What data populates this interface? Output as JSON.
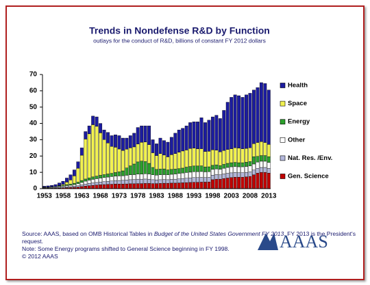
{
  "chart_data": {
    "type": "stacked-bar",
    "title": "Trends in Nondefense R&D by Function",
    "subtitle": "outlays for the conduct of R&D, billions of constant FY 2012 dollars",
    "categories": [
      "1953",
      null,
      null,
      null,
      null,
      "1958",
      null,
      null,
      null,
      null,
      "1963",
      null,
      null,
      null,
      null,
      "1968",
      null,
      null,
      null,
      null,
      "1973",
      null,
      null,
      null,
      null,
      "1978",
      null,
      null,
      null,
      null,
      "1983",
      null,
      null,
      null,
      null,
      "1988",
      null,
      null,
      null,
      null,
      "1993",
      null,
      null,
      null,
      null,
      "1998",
      null,
      null,
      null,
      null,
      "2003",
      null,
      null,
      null,
      null,
      "2008",
      null,
      null,
      null,
      null,
      "2013"
    ],
    "ylim": [
      0,
      70
    ],
    "yticks": [
      0,
      10,
      20,
      30,
      40,
      50,
      60,
      70
    ],
    "series": [
      {
        "name": "Gen. Science",
        "color": "#c00000",
        "values": [
          0.3,
          0.3,
          0.3,
          0.4,
          0.4,
          0.5,
          0.6,
          0.7,
          0.8,
          1.0,
          1.3,
          1.6,
          1.8,
          2.0,
          2.2,
          2.4,
          2.5,
          2.6,
          2.7,
          2.8,
          2.8,
          2.8,
          2.9,
          3.0,
          3.0,
          3.1,
          3.1,
          3.2,
          3.2,
          3.1,
          3.1,
          3.2,
          3.3,
          3.3,
          3.4,
          3.4,
          3.5,
          3.6,
          3.7,
          3.8,
          3.9,
          3.9,
          4.0,
          4.0,
          4.1,
          5.5,
          5.8,
          5.8,
          6.2,
          6.5,
          6.8,
          7.0,
          7.0,
          7.0,
          7.2,
          7.5,
          8.5,
          9.5,
          10.0,
          10.0,
          9.5
        ]
      },
      {
        "name": "Nat. Res. /Env.",
        "color": "#b4b8dc",
        "values": [
          0.2,
          0.2,
          0.3,
          0.3,
          0.4,
          0.5,
          0.6,
          0.6,
          0.7,
          0.8,
          1.0,
          1.2,
          1.4,
          1.5,
          1.6,
          1.7,
          1.8,
          1.9,
          2.0,
          2.1,
          2.2,
          2.3,
          2.4,
          2.5,
          2.6,
          2.7,
          2.7,
          2.7,
          2.6,
          2.4,
          2.3,
          2.3,
          2.3,
          2.2,
          2.3,
          2.4,
          2.5,
          2.6,
          2.7,
          2.8,
          2.9,
          2.9,
          2.9,
          2.8,
          2.8,
          2.8,
          2.8,
          2.7,
          2.8,
          2.9,
          2.9,
          2.9,
          2.8,
          2.8,
          2.8,
          2.8,
          2.9,
          3.0,
          3.0,
          3.0,
          2.9
        ]
      },
      {
        "name": "Other",
        "color": "#ffffff",
        "values": [
          0.3,
          0.3,
          0.4,
          0.4,
          0.5,
          0.6,
          0.7,
          0.8,
          1.0,
          1.2,
          1.5,
          1.8,
          2.0,
          2.2,
          2.3,
          2.4,
          2.5,
          2.6,
          2.7,
          2.8,
          2.8,
          2.8,
          2.9,
          3.0,
          3.0,
          3.1,
          3.1,
          3.2,
          3.2,
          3.0,
          2.9,
          3.0,
          3.0,
          3.0,
          3.1,
          3.2,
          3.3,
          3.4,
          3.5,
          3.5,
          3.6,
          3.6,
          3.6,
          3.5,
          3.5,
          3.5,
          3.5,
          3.4,
          3.5,
          3.6,
          3.7,
          3.7,
          3.6,
          3.6,
          3.6,
          3.6,
          3.7,
          3.8,
          3.8,
          3.8,
          3.7
        ]
      },
      {
        "name": "Energy",
        "color": "#2ca02c",
        "values": [
          0.2,
          0.2,
          0.2,
          0.3,
          0.4,
          0.5,
          0.6,
          0.7,
          0.8,
          1.0,
          1.2,
          1.3,
          1.4,
          1.5,
          1.6,
          1.7,
          1.8,
          1.9,
          2.0,
          2.2,
          2.5,
          3.0,
          4.5,
          5.5,
          6.5,
          7.5,
          8.0,
          7.5,
          6.5,
          4.5,
          3.5,
          3.5,
          3.5,
          3.0,
          3.0,
          3.0,
          3.0,
          3.0,
          3.3,
          3.5,
          3.5,
          3.5,
          3.5,
          3.0,
          3.0,
          2.5,
          2.5,
          2.2,
          2.4,
          2.5,
          2.5,
          2.5,
          2.5,
          2.5,
          2.6,
          2.7,
          4.5,
          3.5,
          3.5,
          3.5,
          3.5
        ]
      },
      {
        "name": "Space",
        "color": "#f2f250",
        "values": [
          0,
          0,
          0,
          0,
          0.2,
          0.5,
          1.5,
          2.5,
          4.5,
          8.5,
          15.5,
          24.5,
          27.0,
          32.0,
          30.5,
          26.0,
          21.5,
          19.0,
          16.5,
          15.5,
          14.0,
          12.5,
          11.5,
          11.0,
          10.5,
          11.0,
          11.5,
          12.0,
          11.5,
          9.0,
          8.5,
          9.5,
          8.5,
          8.0,
          9.0,
          9.5,
          10.0,
          10.5,
          10.5,
          11.0,
          11.0,
          10.5,
          10.5,
          9.5,
          9.5,
          9.5,
          9.0,
          8.5,
          8.5,
          8.5,
          8.5,
          9.0,
          9.0,
          8.5,
          8.5,
          8.5,
          8.0,
          8.5,
          8.5,
          8.0,
          7.5
        ]
      },
      {
        "name": "Health",
        "color": "#1c1ca0",
        "values": [
          0.5,
          0.7,
          0.8,
          1.1,
          1.6,
          1.9,
          2.5,
          3.2,
          3.7,
          4.0,
          4.5,
          4.6,
          4.9,
          5.3,
          5.8,
          5.8,
          5.9,
          6.5,
          6.6,
          7.6,
          8.2,
          7.6,
          6.8,
          7.5,
          8.4,
          10.1,
          10.1,
          9.9,
          11.5,
          8.0,
          7.2,
          9.5,
          8.9,
          9.0,
          10.7,
          12.5,
          13.7,
          13.9,
          14.8,
          15.9,
          16.1,
          16.6,
          19.0,
          17.7,
          19.1,
          20.2,
          21.4,
          20.4,
          24.6,
          29.0,
          31.6,
          32.4,
          32.1,
          31.6,
          32.8,
          33.4,
          32.9,
          33.7,
          36.2,
          36.2,
          33.4
        ]
      }
    ],
    "source_prefix": "Source: AAAS, based on OMB Historical Tables in ",
    "source_italic": "Budget of the United States Government FY 2013",
    "source_suffix": ". FY 2013 is the President's request.",
    "note": "Note: Some Energy programs shifted to General Science beginning in FY 1998.",
    "copyright": "© 2012 AAAS",
    "logo": "AAAS"
  }
}
